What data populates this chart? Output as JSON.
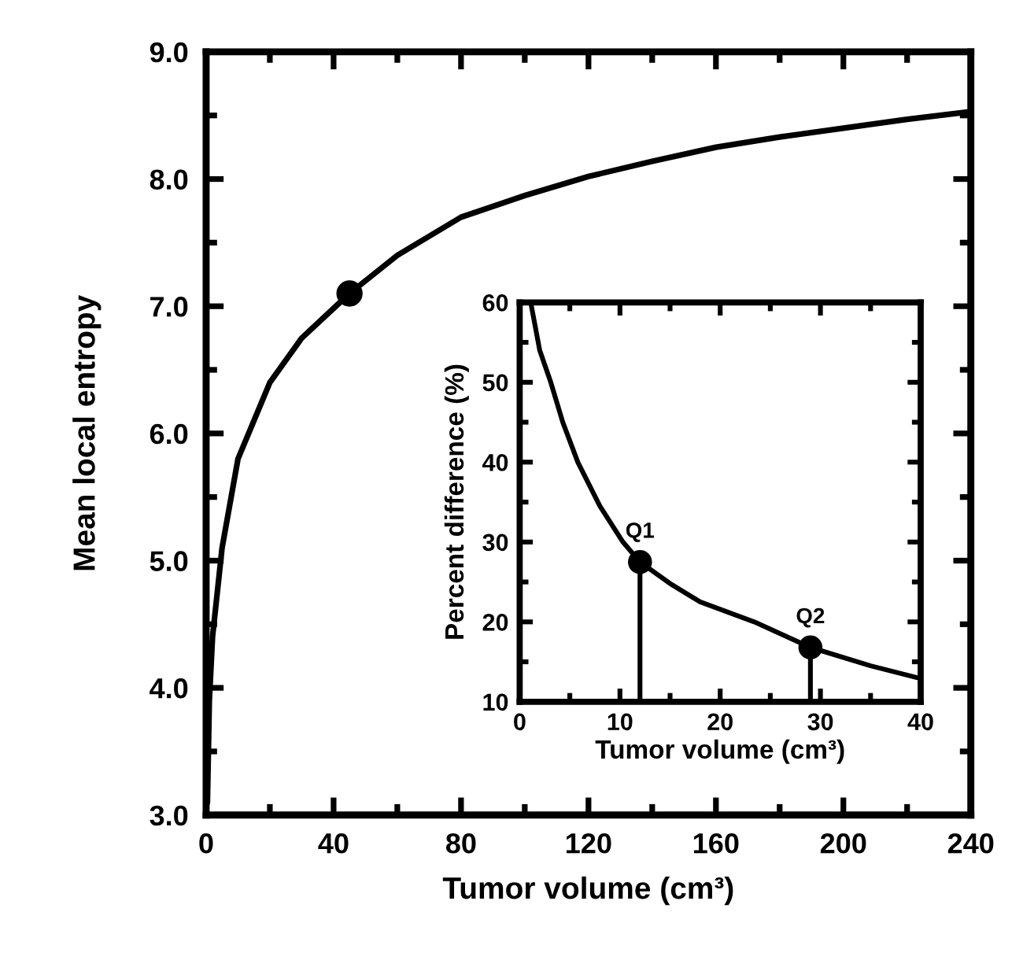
{
  "chart_data": [
    {
      "type": "line",
      "xlabel": "Tumor volume (cm³)",
      "ylabel": "Mean local entropy",
      "xlim": [
        0,
        240
      ],
      "xticks": [
        0,
        40,
        80,
        120,
        160,
        200,
        240
      ],
      "ylim": [
        3.0,
        9.0
      ],
      "yticks": [
        {
          "value": 3,
          "label": "3.0"
        },
        {
          "value": 4,
          "label": "4.0"
        },
        {
          "value": 5,
          "label": "5.0"
        },
        {
          "value": 6,
          "label": "6.0"
        },
        {
          "value": 7,
          "label": "7.0"
        },
        {
          "value": 8,
          "label": "8.0"
        },
        {
          "value": 9,
          "label": "9.0"
        }
      ],
      "series": [
        {
          "color": "#000000",
          "x": [
            0.4,
            1,
            2,
            5,
            10,
            20,
            30,
            45,
            60,
            80,
            100,
            120,
            140,
            160,
            180,
            200,
            220,
            240
          ],
          "values": [
            3.1,
            3.9,
            4.4,
            5.1,
            5.8,
            6.4,
            6.75,
            7.1,
            7.4,
            7.7,
            7.87,
            8.02,
            8.14,
            8.25,
            8.33,
            8.4,
            8.47,
            8.53
          ]
        },
        {
          "type": "scatter",
          "color": "#000000",
          "x": [
            45
          ],
          "values": [
            7.1
          ]
        }
      ]
    },
    {
      "type": "line",
      "xlabel": "Tumor volume (cm³)",
      "ylabel": "Percent difference (%)",
      "xlim": [
        0,
        40
      ],
      "xticks": [
        0,
        10,
        20,
        30,
        40
      ],
      "ylim": [
        10,
        60
      ],
      "yticks": [
        10,
        20,
        30,
        40,
        50,
        60
      ],
      "series": [
        {
          "color": "#000000",
          "x": [
            1.1,
            2,
            3.1,
            4.3,
            5.8,
            8,
            10.3,
            12,
            15,
            18,
            23.4,
            29,
            35,
            40
          ],
          "values": [
            60,
            54,
            50,
            45,
            40,
            34.5,
            30,
            27.5,
            24.8,
            22.5,
            20,
            16.8,
            14.5,
            12.9
          ]
        },
        {
          "type": "lollipop",
          "color": "#000000",
          "x": [
            12,
            29
          ],
          "values": [
            27.5,
            16.8
          ]
        }
      ],
      "annotations": [
        {
          "text": "Q1",
          "x": 12,
          "y": 27.5
        },
        {
          "text": "Q2",
          "x": 29,
          "y": 16.8
        }
      ]
    }
  ]
}
